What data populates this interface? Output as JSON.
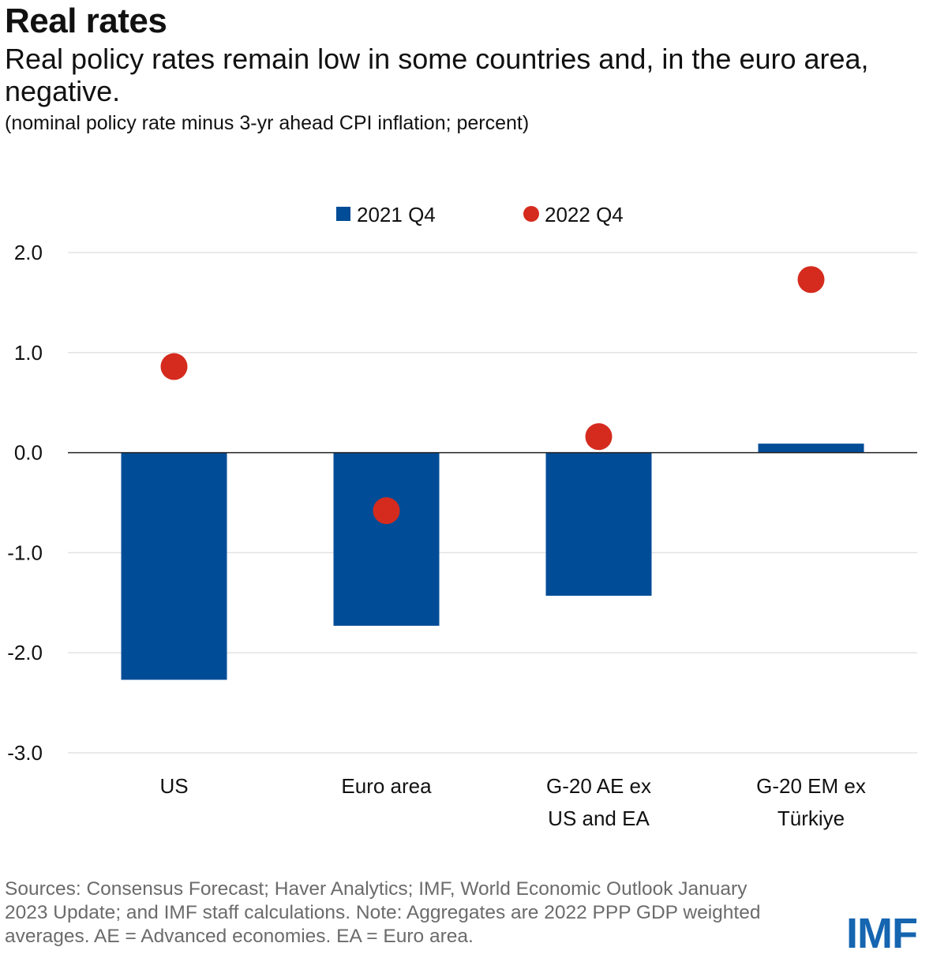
{
  "header": {
    "title": "Real rates",
    "subtitle": "Real policy rates remain low in some countries and, in the euro area, negative.",
    "unit_note": "(nominal policy rate minus 3-yr ahead CPI inflation; percent)"
  },
  "chart_data": {
    "type": "bar",
    "categories": [
      [
        "US"
      ],
      [
        "Euro area"
      ],
      [
        "G-20 AE ex",
        "US and EA"
      ],
      [
        "G-20 EM ex",
        "Türkiye"
      ]
    ],
    "series": [
      {
        "name": "2021 Q4",
        "kind": "bar",
        "color": "#004c97",
        "values": [
          -2.27,
          -1.73,
          -1.43,
          0.09
        ]
      },
      {
        "name": "2022 Q4",
        "kind": "dot",
        "color": "#d52b1e",
        "values": [
          0.86,
          -0.58,
          0.16,
          1.73
        ]
      }
    ],
    "yticks": [
      "2.0",
      "1.0",
      "0.0",
      "-1.0",
      "-2.0",
      "-3.0"
    ],
    "ylim": [
      -3.0,
      2.0
    ],
    "grid": true,
    "legend_position": "top-center"
  },
  "footer": {
    "sources": "Sources: Consensus Forecast; Haver Analytics; IMF, World Economic Outlook January 2023 Update; and IMF staff calculations. Note: Aggregates are 2022 PPP GDP weighted averages. AE = Advanced economies. EA = Euro area.",
    "logo": "IMF"
  }
}
